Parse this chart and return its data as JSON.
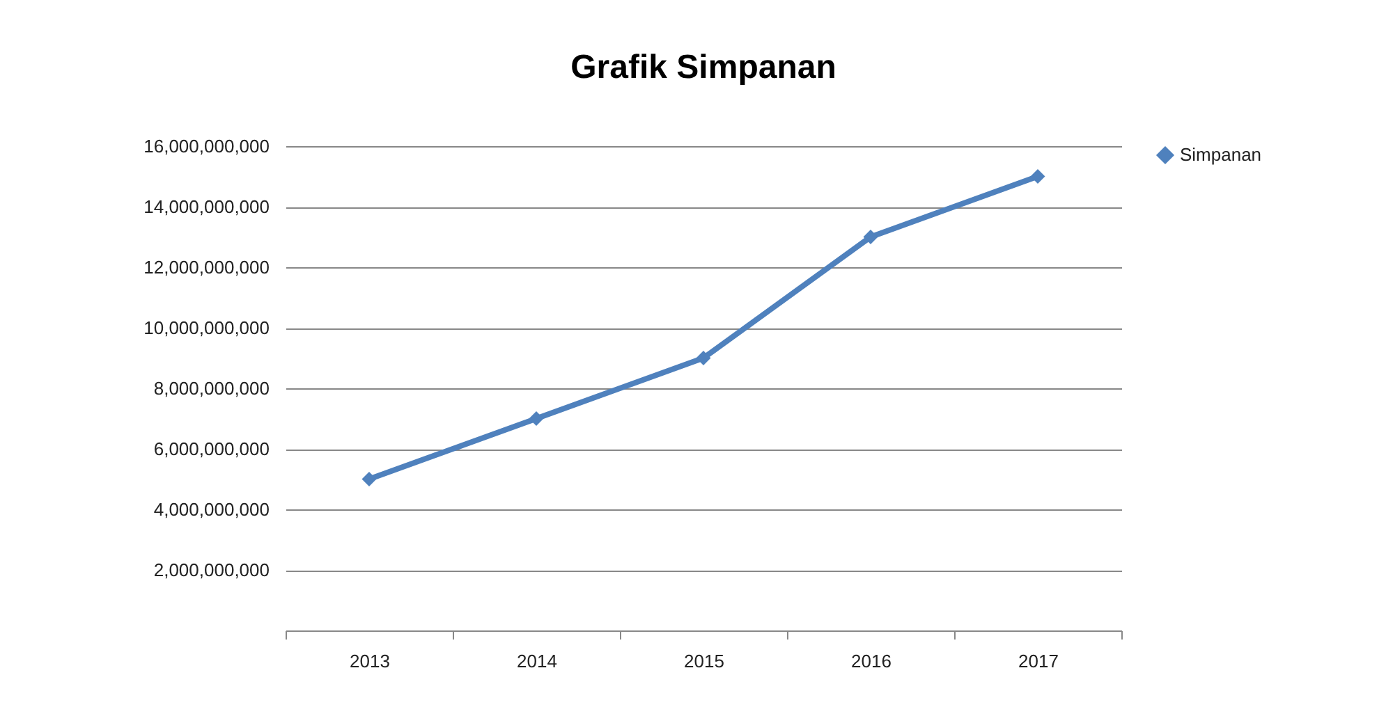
{
  "chart_data": {
    "type": "line",
    "title": "Grafik Simpanan",
    "categories": [
      "2013",
      "2014",
      "2015",
      "2016",
      "2017"
    ],
    "series": [
      {
        "name": "Simpanan",
        "color": "#4f81bd",
        "values": [
          5000000000,
          7000000000,
          9000000000,
          13000000000,
          15000000000
        ]
      }
    ],
    "ylim": [
      0,
      16000000000
    ],
    "yticks": [
      {
        "value": 0,
        "label": null
      },
      {
        "value": 2000000000,
        "label": "2,000,000,000"
      },
      {
        "value": 4000000000,
        "label": "4,000,000,000"
      },
      {
        "value": 6000000000,
        "label": "6,000,000,000"
      },
      {
        "value": 8000000000,
        "label": "8,000,000,000"
      },
      {
        "value": 10000000000,
        "label": "10,000,000,000"
      },
      {
        "value": 12000000000,
        "label": "12,000,000,000"
      },
      {
        "value": 14000000000,
        "label": "14,000,000,000"
      },
      {
        "value": 16000000000,
        "label": "16,000,000,000"
      }
    ],
    "grid": "y",
    "legend": "right",
    "marker": "diamond",
    "line_style": "solid"
  }
}
